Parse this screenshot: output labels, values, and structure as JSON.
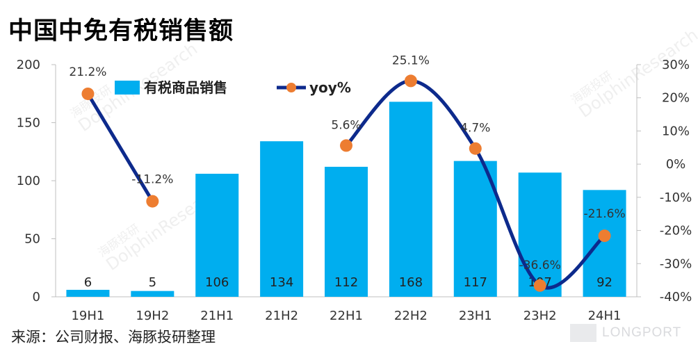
{
  "page": {
    "title": "中国中免有税销售额",
    "source": "来源：公司财报、海豚投研整理",
    "watermark_cn": "海豚投研",
    "watermark_en": "DolphinResearch",
    "logo_text": "LONGPORT"
  },
  "chart_data": {
    "type": "bar",
    "categories": [
      "19H1",
      "19H2",
      "21H1",
      "21H2",
      "22H1",
      "22H2",
      "23H1",
      "23H2",
      "24H1"
    ],
    "series": [
      {
        "name": "有税商品销售",
        "type": "bar",
        "axis": "left",
        "values": [
          6,
          5,
          106,
          134,
          112,
          168,
          117,
          107,
          92
        ],
        "labels": [
          "6",
          "5",
          "106",
          "134",
          "112",
          "168",
          "117",
          "107",
          "92"
        ],
        "color": "#00aeef"
      },
      {
        "name": "yoy%",
        "type": "line",
        "axis": "right",
        "values": [
          21.2,
          -11.2,
          null,
          null,
          5.6,
          25.1,
          4.7,
          -36.6,
          -21.6
        ],
        "labels": [
          "21.2%",
          "-11.2%",
          "",
          "",
          "5.6%",
          "25.1%",
          "4.7%",
          "-36.6%",
          "-21.6%"
        ],
        "line_color": "#0d2a8c",
        "marker_color": "#ed7d31"
      }
    ],
    "y_left": {
      "min": 0,
      "max": 200,
      "ticks": [
        0,
        50,
        100,
        150,
        200
      ],
      "tick_labels": [
        "0",
        "50",
        "100",
        "150",
        "200"
      ]
    },
    "y_right": {
      "min": -40,
      "max": 30,
      "ticks": [
        30,
        20,
        10,
        0,
        -10,
        -20,
        -30,
        -40
      ],
      "tick_labels": [
        "30%",
        "20%",
        "10%",
        "0%",
        "-10%",
        "-20%",
        "-30%",
        "-40%"
      ]
    },
    "legend": {
      "position": "top",
      "items": [
        "有税商品销售",
        "yoy%"
      ]
    },
    "grid": false
  }
}
